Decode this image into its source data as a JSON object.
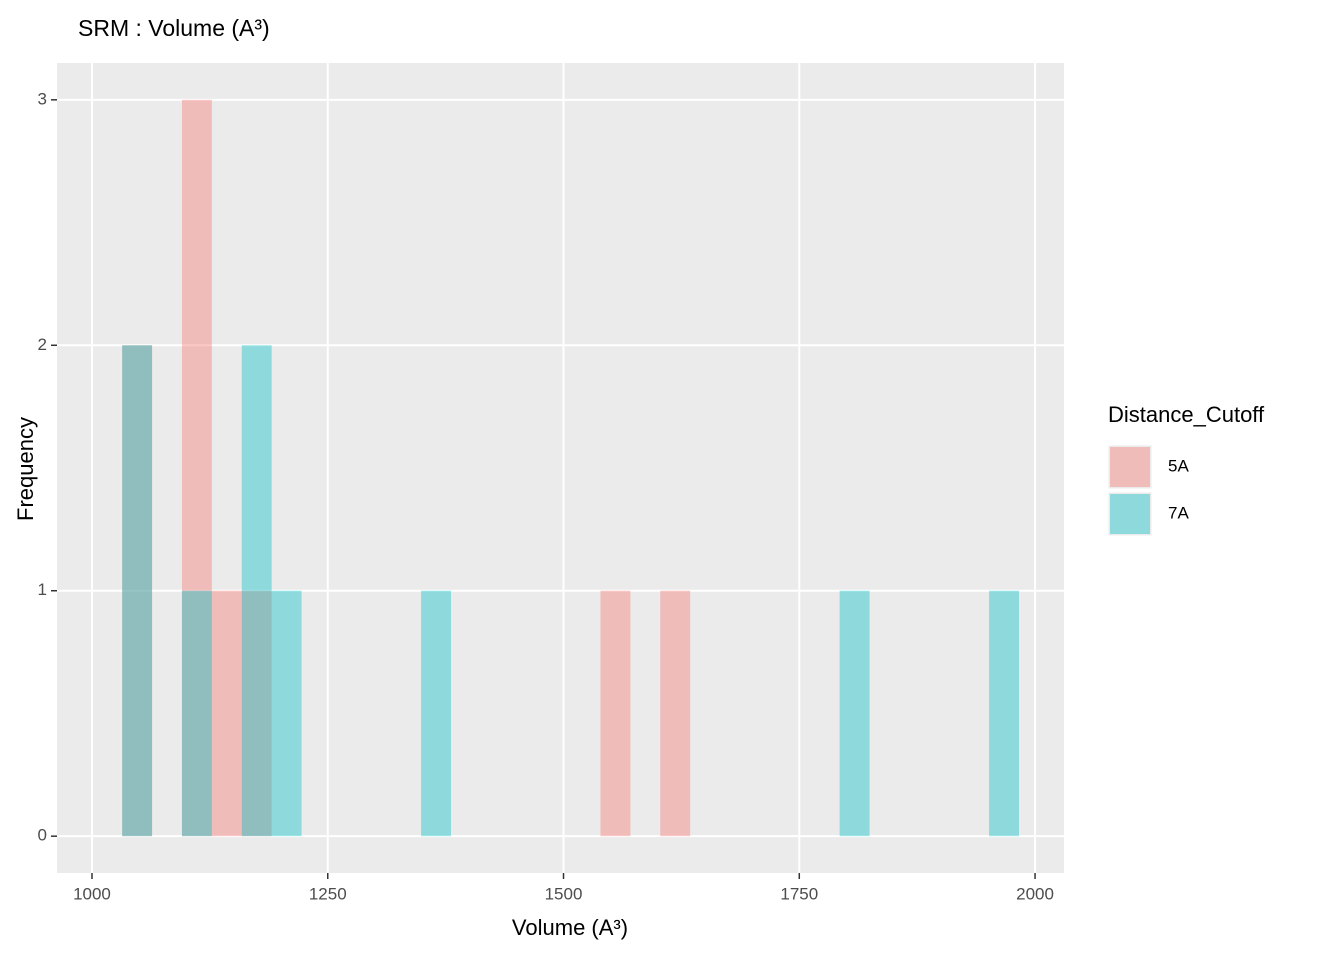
{
  "chart_data": {
    "type": "histogram",
    "title": "SRM : Volume (A³)",
    "x_label": "Volume (A³)",
    "y_label": "Frequency",
    "bins": [
      1032.0,
      1063.7,
      1095.4,
      1127.1,
      1158.8,
      1190.5,
      1222.2,
      1253.9,
      1285.6,
      1317.3,
      1349.0,
      1380.7,
      1412.4,
      1444.1,
      1475.8,
      1507.5,
      1539.2,
      1570.9,
      1602.6,
      1634.3,
      1666.0,
      1697.7,
      1729.4,
      1761.1,
      1792.8,
      1824.5,
      1856.2,
      1887.9,
      1919.6,
      1951.3,
      1983.0
    ],
    "series": [
      {
        "name": "5A",
        "color": "#F8766D",
        "values": [
          2,
          0,
          3,
          1,
          1,
          0,
          0,
          0,
          0,
          0,
          0,
          0,
          0,
          0,
          0,
          0,
          1,
          0,
          1,
          0,
          0,
          0,
          0,
          0,
          0,
          0,
          0,
          0,
          0,
          0
        ]
      },
      {
        "name": "7A",
        "color": "#00BFC4",
        "values": [
          2,
          0,
          1,
          0,
          2,
          1,
          0,
          0,
          0,
          0,
          1,
          0,
          0,
          0,
          0,
          0,
          0,
          0,
          0,
          0,
          0,
          0,
          0,
          0,
          1,
          0,
          0,
          0,
          0,
          1
        ]
      }
    ],
    "legend_title": "Distance_Cutoff",
    "xlim": [
      962.9,
      2030.7
    ],
    "ylim": [
      -0.15,
      3.15
    ],
    "xticks": [
      1000,
      1250,
      1500,
      1750,
      2000
    ],
    "yticks": [
      0,
      1,
      2,
      3
    ],
    "grid": true,
    "legend": "right"
  }
}
